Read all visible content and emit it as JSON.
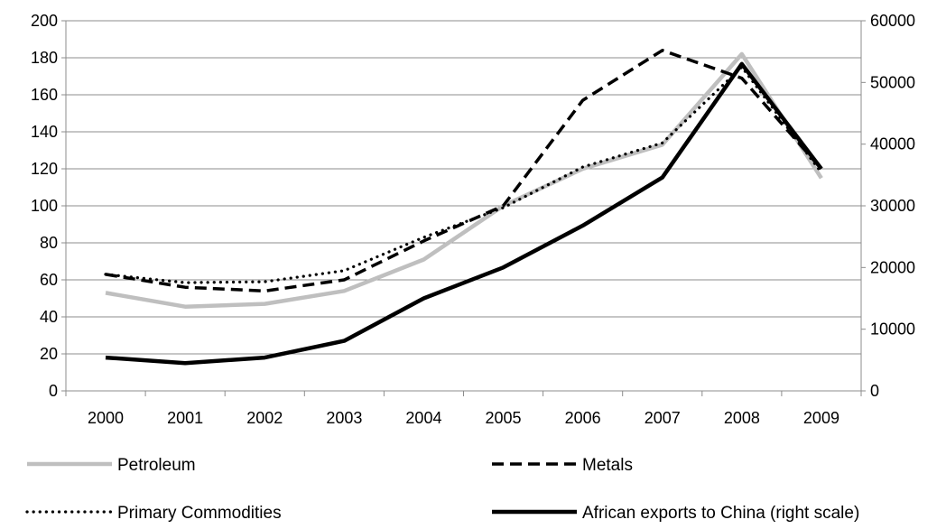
{
  "chart_data": {
    "type": "line",
    "title": "",
    "xlabel": "",
    "ylabel": "",
    "categories": [
      "2000",
      "2001",
      "2002",
      "2003",
      "2004",
      "2005",
      "2006",
      "2007",
      "2008",
      "2009"
    ],
    "ylim": [
      0,
      200
    ],
    "y2lim": [
      0,
      60000
    ],
    "y_ticks": [
      "0",
      "20",
      "40",
      "60",
      "80",
      "100",
      "120",
      "140",
      "160",
      "180",
      "200"
    ],
    "y2_ticks": [
      "0",
      "10000",
      "20000",
      "30000",
      "40000",
      "50000",
      "60000"
    ],
    "grid": true,
    "legend_position": "bottom",
    "series": [
      {
        "name": "Petroleum",
        "axis": "left",
        "style": "solid-gray",
        "color": "#bfbfbf",
        "values": [
          53,
          45.5,
          47,
          54,
          71,
          100,
          120,
          133,
          182,
          115
        ]
      },
      {
        "name": "Metals",
        "axis": "left",
        "style": "dashed",
        "color": "#000000",
        "values": [
          63,
          56,
          54,
          60,
          81,
          100,
          157,
          184,
          169,
          120
        ]
      },
      {
        "name": "Primary Commodities",
        "axis": "left",
        "style": "dotted",
        "color": "#000000",
        "values": [
          63,
          58.5,
          59,
          65,
          83,
          99,
          121,
          134,
          175,
          118
        ]
      },
      {
        "name": "African exports to China (right scale)",
        "axis": "right",
        "style": "solid-black",
        "color": "#000000",
        "values": [
          5400,
          4500,
          5400,
          8100,
          15000,
          20000,
          26800,
          34600,
          53000,
          36000
        ]
      }
    ]
  }
}
